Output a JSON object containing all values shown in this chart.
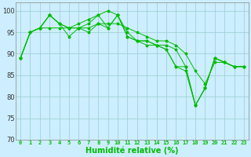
{
  "xlabel": "Humidité relative (%)",
  "xlim": [
    -0.5,
    23.5
  ],
  "ylim": [
    70,
    102
  ],
  "yticks": [
    70,
    75,
    80,
    85,
    90,
    95,
    100
  ],
  "xticks": [
    0,
    1,
    2,
    3,
    4,
    5,
    6,
    7,
    8,
    9,
    10,
    11,
    12,
    13,
    14,
    15,
    16,
    17,
    18,
    19,
    20,
    21,
    22,
    23
  ],
  "background_color": "#cceeff",
  "grid_color": "#99cccc",
  "line_color": "#00bb00",
  "series": [
    {
      "x": [
        0,
        1,
        2,
        3,
        4,
        5,
        6,
        7,
        8,
        9,
        10,
        11,
        12,
        13,
        14,
        15,
        16,
        17,
        18,
        19,
        20,
        21,
        22
      ],
      "y": [
        89,
        95,
        96,
        99,
        97,
        94,
        96,
        97,
        99,
        96,
        99,
        94,
        93,
        93,
        92,
        91,
        87,
        87,
        78,
        82,
        89,
        88,
        87
      ]
    },
    {
      "x": [
        0,
        1,
        2,
        3,
        4,
        5,
        6,
        7,
        8,
        9,
        10,
        11,
        12,
        13,
        14,
        15,
        16,
        17,
        18,
        19,
        20,
        21,
        22,
        23
      ],
      "y": [
        89,
        95,
        96,
        99,
        97,
        96,
        97,
        98,
        99,
        100,
        99,
        95,
        93,
        93,
        92,
        92,
        91,
        87,
        78,
        82,
        89,
        88,
        87,
        87
      ]
    },
    {
      "x": [
        0,
        1,
        2,
        3,
        4,
        5,
        6,
        7,
        8,
        9,
        10,
        11,
        12,
        13,
        14,
        15,
        16,
        17,
        18,
        19,
        20,
        21,
        22,
        23
      ],
      "y": [
        89,
        95,
        96,
        99,
        97,
        96,
        96,
        95,
        97,
        96,
        99,
        94,
        93,
        92,
        92,
        91,
        87,
        86,
        78,
        82,
        89,
        88,
        87,
        87
      ]
    },
    {
      "x": [
        0,
        1,
        2,
        3,
        4,
        5,
        6,
        7,
        8,
        9,
        10,
        11,
        12,
        13,
        14,
        15,
        16,
        17,
        18,
        19,
        20,
        21,
        22,
        23
      ],
      "y": [
        89,
        95,
        96,
        96,
        96,
        96,
        96,
        96,
        97,
        97,
        97,
        96,
        95,
        94,
        93,
        93,
        92,
        90,
        86,
        83,
        88,
        88,
        87,
        87
      ]
    }
  ]
}
